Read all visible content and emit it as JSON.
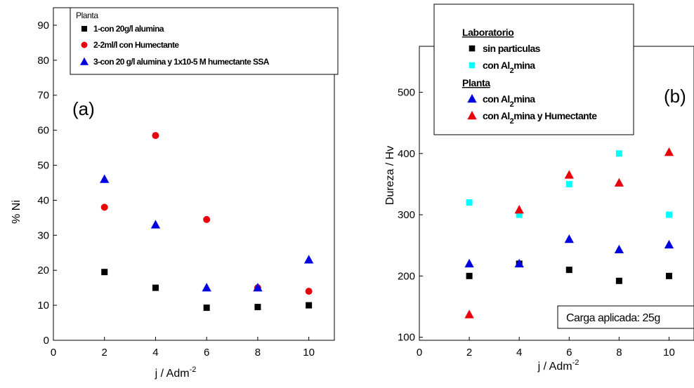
{
  "chart_data": [
    {
      "type": "scatter",
      "panel_label": "(a)",
      "xlabel": "j / Adm",
      "xlabel_sup": "-2",
      "ylabel": "% Ni",
      "xlim": [
        0,
        11
      ],
      "ylim": [
        0,
        95
      ],
      "xticks": [
        0,
        2,
        4,
        6,
        8,
        10
      ],
      "yticks": [
        0,
        10,
        20,
        30,
        40,
        50,
        60,
        70,
        80,
        90
      ],
      "legend_title": "Planta",
      "legend_placement": "top",
      "series": [
        {
          "name": "1-con 20g/l alumina",
          "marker": "square",
          "color": "#000000",
          "x": [
            2,
            4,
            6,
            8,
            10
          ],
          "y": [
            19.5,
            15,
            9.3,
            9.5,
            10
          ]
        },
        {
          "name": "2-2ml/l con Humectante",
          "marker": "circle",
          "color": "#e8000b",
          "x": [
            2,
            4,
            6,
            8,
            10
          ],
          "y": [
            38,
            58.5,
            34.5,
            15,
            14
          ]
        },
        {
          "name": "3-con 20 g/l alumina y 1x10-5 M humectante SSA",
          "marker": "triangle",
          "color": "#0000e0",
          "x": [
            2,
            4,
            6,
            8,
            10
          ],
          "y": [
            46,
            33,
            15,
            15,
            23
          ]
        }
      ]
    },
    {
      "type": "scatter",
      "panel_label": "(b)",
      "xlabel": "j / Adm",
      "xlabel_sup": "-2",
      "ylabel": "Dureza / Hv",
      "xlim": [
        0,
        11
      ],
      "ylim": [
        95,
        575
      ],
      "xticks": [
        0,
        2,
        4,
        6,
        8,
        10
      ],
      "yticks": [
        100,
        200,
        300,
        400,
        500
      ],
      "legend_placement": "top",
      "legend_groups": [
        {
          "title": "Laboratorio",
          "entries": [
            0,
            1
          ]
        },
        {
          "title": "Planta",
          "entries": [
            2,
            3
          ]
        }
      ],
      "annotation": "Carga aplicada: 25g",
      "series": [
        {
          "name": "sin particulas",
          "marker": "square",
          "color": "#000000",
          "x": [
            2,
            4,
            6,
            8,
            10
          ],
          "y": [
            200,
            220,
            210,
            192,
            200
          ]
        },
        {
          "name": "con Al",
          "name_sub": "2",
          "name_rest": "mina",
          "marker": "square",
          "color": "#00ffff",
          "x": [
            2,
            4,
            6,
            8,
            10
          ],
          "y": [
            320,
            300,
            350,
            400,
            300
          ]
        },
        {
          "name": "con Al",
          "name_sub": "2",
          "name_rest": "mina",
          "marker": "triangle",
          "color": "#0000e0",
          "x": [
            2,
            4,
            6,
            8,
            10
          ],
          "y": [
            220,
            220,
            260,
            243,
            251
          ]
        },
        {
          "name": "con Al",
          "name_sub": "2",
          "name_rest": "mina y Humectante",
          "marker": "triangle",
          "color": "#e8000b",
          "x": [
            2,
            4,
            6,
            8,
            10
          ],
          "y": [
            137,
            308,
            365,
            352,
            402
          ]
        }
      ]
    }
  ]
}
